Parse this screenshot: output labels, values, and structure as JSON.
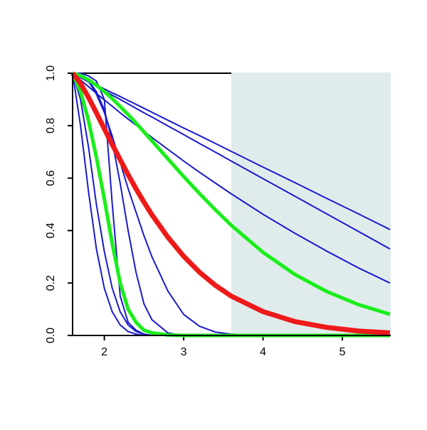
{
  "chart_data": {
    "type": "line",
    "x": [
      1.6,
      1.7,
      1.8,
      1.9,
      2.0,
      2.1,
      2.2,
      2.3,
      2.4,
      2.5,
      2.6,
      2.8,
      3.0,
      3.2,
      3.4,
      3.6,
      4.0,
      4.4,
      4.8,
      5.2,
      5.6
    ],
    "xlim": [
      1.6,
      5.6
    ],
    "ylim": [
      0,
      1
    ],
    "xticks": [
      2,
      3,
      4,
      5
    ],
    "yticks": [
      {
        "value": 0,
        "label": "0.0"
      },
      0.2,
      0.4,
      0.6,
      0.8,
      {
        "value": 1,
        "label": "1.0"
      }
    ],
    "highlight_xrange": [
      3.6,
      5.6
    ],
    "highlight_color": "#e0ecec",
    "series": [
      {
        "color": "#1a1acc",
        "width": 2,
        "values": [
          1,
          0.985,
          0.97,
          0.955,
          0.94,
          0.925,
          0.911,
          0.896,
          0.881,
          0.866,
          0.851,
          0.821,
          0.791,
          0.762,
          0.732,
          0.702,
          0.642,
          0.583,
          0.523,
          0.464,
          0.404
        ]
      },
      {
        "color": "#1a1acc",
        "width": 2,
        "values": [
          1,
          0.983,
          0.967,
          0.95,
          0.933,
          0.916,
          0.9,
          0.883,
          0.866,
          0.849,
          0.833,
          0.799,
          0.766,
          0.732,
          0.699,
          0.665,
          0.598,
          0.531,
          0.464,
          0.397,
          0.33
        ]
      },
      {
        "color": "#1a1acc",
        "width": 2,
        "values": [
          1,
          0.974,
          0.949,
          0.923,
          0.898,
          0.874,
          0.849,
          0.825,
          0.802,
          0.778,
          0.755,
          0.71,
          0.665,
          0.622,
          0.581,
          0.54,
          0.462,
          0.39,
          0.322,
          0.258,
          0.2
        ]
      },
      {
        "color": "#1a1acc",
        "width": 2,
        "values": [
          1,
          0.99,
          0.97,
          0.92,
          0.85,
          0.76,
          0.66,
          0.56,
          0.47,
          0.38,
          0.3,
          0.17,
          0.08,
          0.035,
          0.013,
          0.005,
          0,
          0,
          0,
          0,
          0
        ]
      },
      {
        "color": "#1a1acc",
        "width": 2,
        "values": [
          1,
          0.99,
          0.97,
          0.93,
          0.86,
          0.74,
          0.58,
          0.4,
          0.24,
          0.12,
          0.06,
          0.01,
          0,
          0,
          0,
          0,
          0,
          0,
          0,
          0,
          0
        ]
      },
      {
        "color": "#1a1acc",
        "width": 2,
        "values": [
          1,
          1,
          0.99,
          0.97,
          0.9,
          0.5,
          0.15,
          0.05,
          0.02,
          0.005,
          0,
          0,
          0,
          0,
          0,
          0,
          0,
          0,
          0,
          0,
          0
        ]
      },
      {
        "color": "#1a1acc",
        "width": 2,
        "values": [
          1,
          0.8,
          0.55,
          0.33,
          0.18,
          0.09,
          0.04,
          0.015,
          0.005,
          0,
          0,
          0,
          0,
          0,
          0,
          0,
          0,
          0,
          0,
          0,
          0
        ]
      },
      {
        "color": "#1a1acc",
        "width": 2,
        "values": [
          1,
          0.9,
          0.72,
          0.5,
          0.32,
          0.18,
          0.09,
          0.04,
          0.015,
          0.005,
          0,
          0,
          0,
          0,
          0,
          0,
          0,
          0,
          0,
          0,
          0
        ]
      },
      {
        "color": "#1aee1a",
        "width": 5,
        "values": [
          1,
          0.991,
          0.975,
          0.954,
          0.93,
          0.903,
          0.873,
          0.842,
          0.81,
          0.776,
          0.742,
          0.674,
          0.606,
          0.541,
          0.479,
          0.42,
          0.317,
          0.233,
          0.168,
          0.118,
          0.081
        ]
      },
      {
        "color": "#1aee1a",
        "width": 5,
        "values": [
          1,
          0.93,
          0.82,
          0.68,
          0.52,
          0.35,
          0.2,
          0.1,
          0.05,
          0.02,
          0.01,
          0.002,
          0,
          0,
          0,
          0,
          0,
          0,
          0,
          0,
          0
        ]
      },
      {
        "color": "#ee1a1a",
        "width": 7,
        "values": [
          1,
          0.961,
          0.908,
          0.849,
          0.788,
          0.728,
          0.67,
          0.613,
          0.559,
          0.508,
          0.46,
          0.375,
          0.302,
          0.241,
          0.191,
          0.15,
          0.091,
          0.053,
          0.031,
          0.017,
          0.01
        ]
      }
    ]
  }
}
